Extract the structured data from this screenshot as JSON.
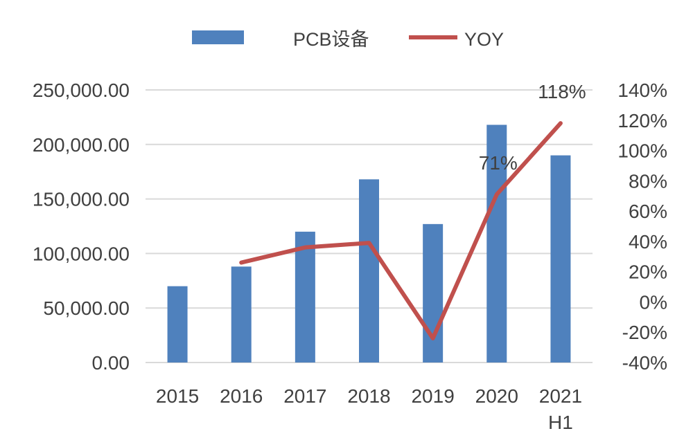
{
  "chart_data": {
    "type": "bar+line",
    "categories": [
      "2015",
      "2016",
      "2017",
      "2018",
      "2019",
      "2020",
      "2021\nH1"
    ],
    "series": [
      {
        "name": "PCB设备",
        "type": "bar",
        "axis": "left",
        "values": [
          70000,
          88000,
          120000,
          168000,
          127000,
          218000,
          190000
        ]
      },
      {
        "name": "YOY",
        "type": "line",
        "axis": "right",
        "values": [
          null,
          26,
          36,
          39,
          -24,
          71,
          118
        ]
      }
    ],
    "left_axis": {
      "min": 0,
      "max": 250000,
      "step": 50000,
      "tick_labels": [
        "0.00",
        "50,000.00",
        "100,000.00",
        "150,000.00",
        "200,000.00",
        "250,000.00"
      ]
    },
    "right_axis": {
      "min": -40,
      "max": 140,
      "step": 20,
      "tick_labels": [
        "-40%",
        "-20%",
        "0%",
        "20%",
        "40%",
        "60%",
        "80%",
        "100%",
        "120%",
        "140%"
      ]
    },
    "data_labels": [
      {
        "series": "YOY",
        "index": 5,
        "text": "71%"
      },
      {
        "series": "YOY",
        "index": 6,
        "text": "118%"
      }
    ],
    "legend": {
      "position": "top",
      "entries": [
        "PCB设备",
        "YOY"
      ]
    },
    "grid": true,
    "colors": {
      "bar": "#4f81bd",
      "line": "#c0504d",
      "grid": "#d9d9d9",
      "text": "#404040"
    }
  }
}
